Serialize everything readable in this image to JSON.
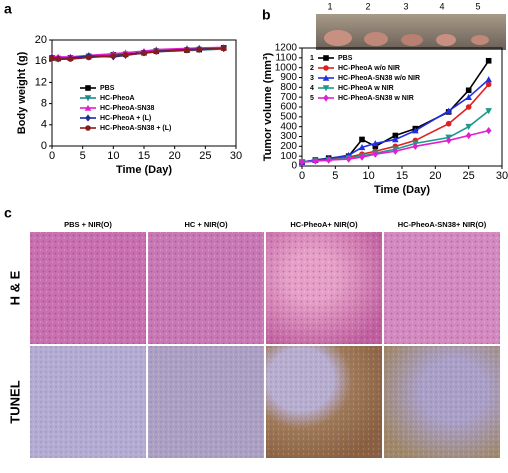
{
  "chart_data": [
    {
      "type": "line",
      "panel": "a",
      "xlabel": "Time (Day)",
      "ylabel": "Body weight (g)",
      "xlim": [
        0,
        30
      ],
      "ylim": [
        0,
        20
      ],
      "xticks": [
        0,
        5,
        10,
        15,
        20,
        25,
        30
      ],
      "yticks": [
        0,
        4,
        8,
        12,
        16,
        20
      ],
      "legend": "lower center",
      "x": [
        0,
        1,
        3,
        6,
        10,
        12,
        15,
        17,
        22,
        24,
        28
      ],
      "series": [
        {
          "name": "PBS",
          "color": "#000000",
          "marker": "square",
          "values": [
            16.6,
            16.5,
            16.6,
            16.9,
            17.2,
            17.3,
            17.6,
            17.9,
            18.1,
            18.2,
            18.5
          ]
        },
        {
          "name": "HC-PheoA",
          "color": "#1a8a8a",
          "marker": "tri-down",
          "values": [
            16.4,
            16.3,
            16.5,
            16.8,
            17.1,
            17.2,
            17.5,
            17.8,
            18.0,
            18.1,
            18.3
          ]
        },
        {
          "name": "HC-PheoA-SN38",
          "color": "#e020d0",
          "marker": "triangle",
          "values": [
            16.9,
            16.8,
            16.8,
            17.1,
            17.4,
            17.6,
            17.9,
            18.2,
            18.4,
            18.5,
            18.6
          ]
        },
        {
          "name": "HC-PheoA + (L)",
          "color": "#1c2b9e",
          "marker": "diamond",
          "values": [
            16.7,
            16.5,
            16.6,
            17.0,
            16.8,
            17.1,
            17.6,
            17.9,
            18.2,
            18.3,
            18.4
          ]
        },
        {
          "name": "HC-PheoA-SN38 + (L)",
          "color": "#8b1a1a",
          "marker": "circle",
          "values": [
            16.5,
            16.4,
            16.4,
            16.7,
            17.0,
            17.2,
            17.5,
            17.8,
            18.1,
            18.2,
            18.4
          ]
        }
      ]
    },
    {
      "type": "line",
      "panel": "b",
      "xlabel": "Time (Day)",
      "ylabel": "Tumor volume (mm³)",
      "xlim": [
        0,
        30
      ],
      "ylim": [
        0,
        1200
      ],
      "xticks": [
        0,
        5,
        10,
        15,
        20,
        25,
        30
      ],
      "yticks": [
        0,
        100,
        200,
        300,
        400,
        500,
        600,
        700,
        800,
        900,
        1000,
        1100,
        1200
      ],
      "legend": "upper left",
      "x": [
        0,
        2,
        4,
        7,
        9,
        11,
        14,
        17,
        22,
        25,
        28
      ],
      "series": [
        {
          "name": "PBS",
          "number": "1",
          "color": "#000000",
          "marker": "square",
          "values": [
            40,
            60,
            80,
            100,
            270,
            200,
            310,
            380,
            550,
            770,
            1070
          ]
        },
        {
          "name": "HC-PheoA w/o NIR",
          "number": "2",
          "color": "#e02020",
          "marker": "circle",
          "values": [
            40,
            55,
            70,
            90,
            120,
            150,
            200,
            260,
            430,
            600,
            830
          ]
        },
        {
          "name": "HC-PheoA-SN38 w/o NIR",
          "number": "3",
          "color": "#2030e0",
          "marker": "triangle",
          "values": [
            40,
            60,
            75,
            110,
            190,
            230,
            270,
            360,
            560,
            700,
            880
          ]
        },
        {
          "name": "HC-PheoA w NIR",
          "number": "4",
          "color": "#1a9a8a",
          "marker": "tri-down",
          "values": [
            40,
            50,
            60,
            80,
            100,
            130,
            170,
            230,
            290,
            400,
            560
          ]
        },
        {
          "name": "HC-PheoA-SN38 w NIR",
          "number": "5",
          "color": "#e020d0",
          "marker": "diamond",
          "values": [
            40,
            50,
            60,
            70,
            90,
            120,
            150,
            200,
            260,
            310,
            360
          ]
        }
      ]
    }
  ],
  "photo": {
    "labels": [
      "1",
      "2",
      "3",
      "4",
      "5"
    ]
  },
  "histology": {
    "panel": "c",
    "columns": [
      "PBS +  NIR(O)",
      "HC + NIR(O)",
      "HC-PheoA+ NIR(O)",
      "HC-PheoA-SN38+ NIR(O)"
    ],
    "rows": [
      "H & E",
      "TUNEL"
    ]
  }
}
